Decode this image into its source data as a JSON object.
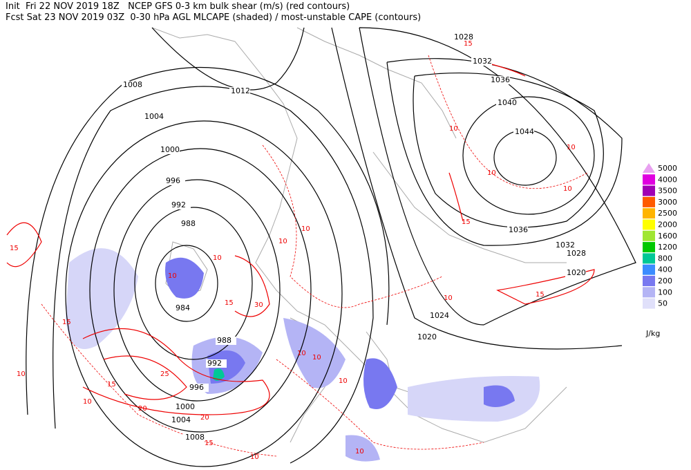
{
  "header": {
    "line1": "Init  Fri 22 NOV 2019 18Z   NCEP GFS 0-3 km bulk shear (m/s) (red contours)",
    "line2": "Fcst Sat 23 NOV 2019 03Z  0-30 hPa AGL MLCAPE (shaded) / most-unstable CAPE (contours)"
  },
  "legend": {
    "unit": "J/kg",
    "levels": [
      {
        "value": 5000,
        "color": "#e8a0f0"
      },
      {
        "value": 4000,
        "color": "#e000e0"
      },
      {
        "value": 3500,
        "color": "#a000b4"
      },
      {
        "value": 3000,
        "color": "#ff5a00"
      },
      {
        "value": 2500,
        "color": "#ffb400"
      },
      {
        "value": 2000,
        "color": "#ffff00"
      },
      {
        "value": 1600,
        "color": "#a0e632"
      },
      {
        "value": 1200,
        "color": "#00c800"
      },
      {
        "value": 800,
        "color": "#00c896"
      },
      {
        "value": 400,
        "color": "#3c8cff"
      },
      {
        "value": 200,
        "color": "#7878f0"
      },
      {
        "value": 100,
        "color": "#b4b4f5"
      },
      {
        "value": 50,
        "color": "#e0e0fa"
      }
    ]
  },
  "pressure_labels": [
    1028,
    1032,
    1036,
    1040,
    1044,
    1012,
    1008,
    1004,
    1000,
    996,
    992,
    988,
    984,
    988,
    992,
    996,
    1000,
    1004,
    1008,
    1036,
    1032,
    1028,
    1020,
    1024,
    1020
  ],
  "shear_labels": [
    15,
    10,
    10,
    10,
    15,
    10,
    15,
    10,
    10,
    15,
    15,
    10,
    25,
    20,
    20,
    15,
    10,
    10,
    10,
    30,
    15,
    10,
    10,
    10,
    10,
    15,
    10,
    10
  ]
}
